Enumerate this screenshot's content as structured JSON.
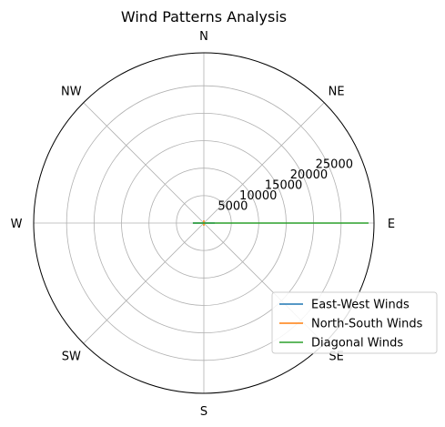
{
  "chart_data": {
    "type": "line",
    "projection": "polar",
    "title": "Wind Patterns Analysis",
    "theta_zero_location": "E",
    "theta_direction": "counterclockwise",
    "direction_labels": [
      {
        "label": "E",
        "angle_deg": 0
      },
      {
        "label": "NE",
        "angle_deg": 45
      },
      {
        "label": "N",
        "angle_deg": 90
      },
      {
        "label": "NW",
        "angle_deg": 135
      },
      {
        "label": "W",
        "angle_deg": 180
      },
      {
        "label": "SW",
        "angle_deg": 225
      },
      {
        "label": "S",
        "angle_deg": 270
      },
      {
        "label": "SE",
        "angle_deg": 315
      }
    ],
    "radial_ticks": [
      5000,
      10000,
      15000,
      20000,
      25000
    ],
    "rlim": [
      0,
      31000
    ],
    "grid": true,
    "series": [
      {
        "name": "East-West Winds",
        "color": "#1f77b4",
        "points": [
          {
            "theta_deg": 0,
            "r": 2000
          },
          {
            "theta_deg": 180,
            "r": 2000
          }
        ]
      },
      {
        "name": "North-South Winds",
        "color": "#ff7f0e",
        "points": [
          {
            "theta_deg": 90,
            "r": 500
          },
          {
            "theta_deg": 270,
            "r": 500
          }
        ]
      },
      {
        "name": "Diagonal Winds",
        "color": "#2ca02c",
        "points": [
          {
            "theta_deg": 180,
            "r": 2000
          },
          {
            "theta_deg": 0,
            "r": 30000
          }
        ]
      }
    ],
    "legend": {
      "placement": "lower-right"
    }
  }
}
